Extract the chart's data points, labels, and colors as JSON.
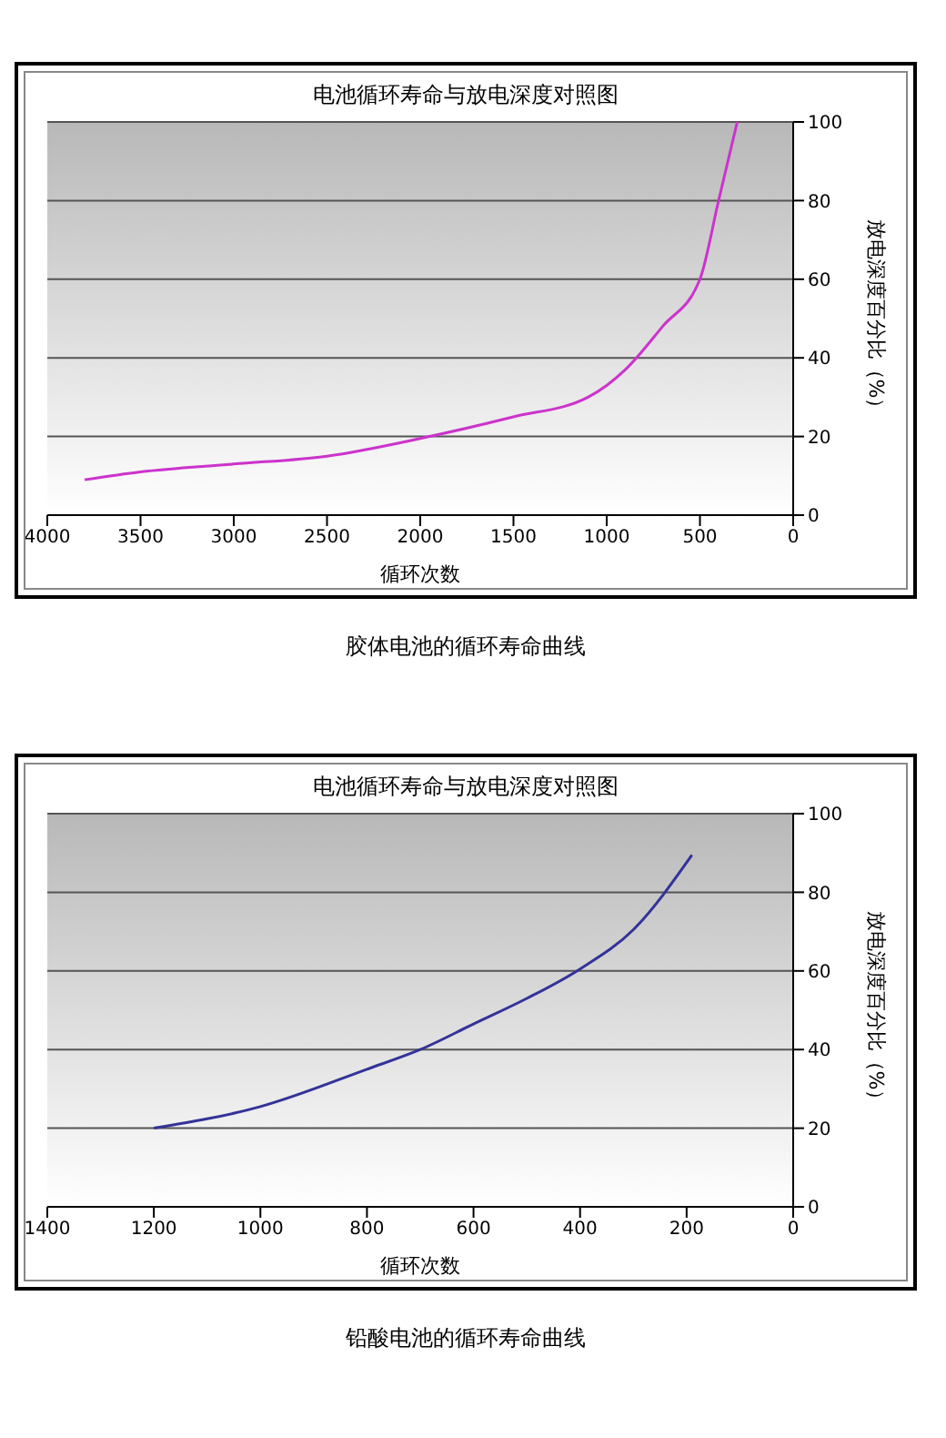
{
  "chart_data": [
    {
      "type": "line",
      "title": "电池循环寿命与放电深度对照图",
      "xlabel": "循环次数",
      "ylabel": "放电深度百分比（%）",
      "x": [
        3800,
        3500,
        3000,
        2500,
        2000,
        1500,
        1100,
        1000,
        900,
        700,
        500,
        400,
        300
      ],
      "series": [
        {
          "color": "#cc33cc",
          "values": [
            9,
            11,
            13,
            15,
            19.5,
            25,
            30,
            33,
            37,
            48,
            60,
            80,
            100
          ]
        }
      ],
      "xlim": [
        4000,
        0
      ],
      "xticks": [
        4000,
        3500,
        3000,
        2500,
        2000,
        1500,
        1000,
        500,
        0
      ],
      "ylim": [
        0,
        100
      ],
      "yticks": [
        0,
        20,
        40,
        60,
        80,
        100
      ],
      "grid": "y",
      "annotations": [
        "胶体电池的循环寿命曲线"
      ]
    },
    {
      "type": "line",
      "title": "电池循环寿命与放电深度对照图",
      "xlabel": "循环次数",
      "ylabel": "放电深度百分比（%）",
      "x": [
        1200,
        1000,
        800,
        700,
        600,
        500,
        400,
        300,
        190
      ],
      "series": [
        {
          "color": "#333399",
          "values": [
            20,
            25.5,
            35,
            40,
            46.5,
            53,
            60.5,
            70.5,
            89.5
          ]
        }
      ],
      "xlim": [
        1400,
        0
      ],
      "xticks": [
        1400,
        1200,
        1000,
        800,
        600,
        400,
        200,
        0
      ],
      "ylim": [
        0,
        100
      ],
      "yticks": [
        0,
        20,
        40,
        60,
        80,
        100
      ],
      "grid": "y",
      "annotations": [
        "铅酸电池的循环寿命曲线"
      ]
    }
  ]
}
